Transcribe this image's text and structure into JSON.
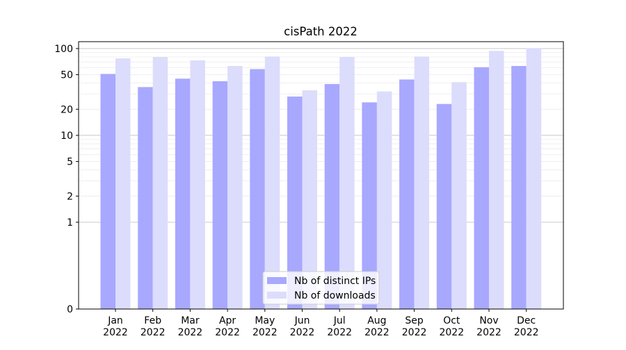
{
  "chart_data": {
    "type": "bar",
    "title": "cisPath 2022",
    "xlabel": "",
    "ylabel": "",
    "yscale": "symlog",
    "ylim": [
      0,
      120
    ],
    "y_ticks": [
      0,
      1,
      2,
      5,
      10,
      20,
      50,
      100
    ],
    "categories": [
      "Jan\n2022",
      "Feb\n2022",
      "Mar\n2022",
      "Apr\n2022",
      "May\n2022",
      "Jun\n2022",
      "Jul\n2022",
      "Aug\n2022",
      "Sep\n2022",
      "Oct\n2022",
      "Nov\n2022",
      "Dec\n2022"
    ],
    "series": [
      {
        "name": "Nb of distinct IPs",
        "color": "#a8a8ff",
        "values": [
          51,
          36,
          45,
          42,
          58,
          28,
          39,
          24,
          44,
          23,
          61,
          63
        ]
      },
      {
        "name": "Nb of downloads",
        "color": "#dcdcfc",
        "values": [
          77,
          80,
          73,
          63,
          81,
          33,
          80,
          32,
          81,
          41,
          94,
          101
        ]
      }
    ],
    "grid": true,
    "legend_position": "bottom-center"
  }
}
